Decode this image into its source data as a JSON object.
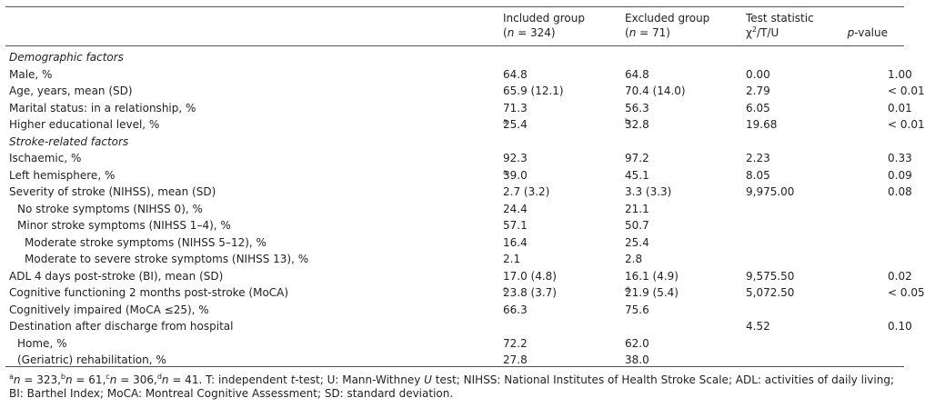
{
  "header": {
    "included_line1": "Included group",
    "included_n": "324",
    "excluded_line1": "Excluded group",
    "excluded_n": "71",
    "test_line1": "Test statistic",
    "test_chi": "χ",
    "test_sup": "2",
    "test_rest": "/T/U",
    "p_italic": "p",
    "p_rest": "-value",
    "n_italic": "n"
  },
  "rows": [
    {
      "label": "Demographic factors",
      "section": true
    },
    {
      "label": "Male, %",
      "inc": "64.8",
      "exc": "64.8",
      "test": "0.00",
      "p": "1.00"
    },
    {
      "label": "Age, years, mean (SD)",
      "inc": "65.9 (12.1)",
      "exc": "70.4 (14.0)",
      "test": "2.79",
      "p": "< 0.01"
    },
    {
      "label": "Marital status: in a relationship, %",
      "inc": "71.3",
      "exc": "56.3",
      "test": "6.05",
      "p": "0.01"
    },
    {
      "label": "Higher educational level, %",
      "inc": "25.4",
      "inc_sup": "a",
      "exc": "32.8",
      "exc_sup": "b",
      "test": "19.68",
      "p": "< 0.01"
    },
    {
      "label": "Stroke-related factors",
      "section": true
    },
    {
      "label": "Ischaemic, %",
      "inc": "92.3",
      "exc": "97.2",
      "test": "2.23",
      "p": "0.33"
    },
    {
      "label": "Left hemisphere, %",
      "inc": "39.0",
      "inc_sup": "a",
      "exc": "45.1",
      "test": "8.05",
      "p": "0.09"
    },
    {
      "label": "Severity of stroke (NIHSS), mean (SD)",
      "inc": "2.7 (3.2)",
      "exc": "3.3 (3.3)",
      "test": "9,975.00",
      "p": "0.08"
    },
    {
      "label": "No stroke symptoms (NIHSS 0), %",
      "indent": 1,
      "inc": "24.4",
      "exc": "21.1"
    },
    {
      "label": "Minor stroke symptoms (NIHSS 1–4), %",
      "indent": 1,
      "inc": "57.1",
      "exc": "50.7"
    },
    {
      "label": "Moderate stroke symptoms (NIHSS 5–12), %",
      "indent": 2,
      "inc": "16.4",
      "exc": "25.4"
    },
    {
      "label": "Moderate to severe stroke symptoms (NIHSS 13), %",
      "indent": 2,
      "inc": "2.1",
      "exc": "2.8"
    },
    {
      "label": "ADL 4 days post-stroke (BI), mean (SD)",
      "inc": "17.0 (4.8)",
      "exc": "16.1 (4.9)",
      "test": "9,575.50",
      "p": "0.02"
    },
    {
      "label": "Cognitive functioning 2 months post-stroke (MoCA)",
      "inc": "23.8 (3.7)",
      "inc_sup": "c",
      "exc": "21.9 (5.4)",
      "exc_sup": "d",
      "test": "5,072.50",
      "p": "< 0.05"
    },
    {
      "label": "Cognitively impaired (MoCA ≤25), %",
      "inc": "66.3",
      "exc": "75.6"
    },
    {
      "label": "Destination after discharge from hospital",
      "test": "4.52",
      "p": "0.10"
    },
    {
      "label": "Home, %",
      "indent": 1,
      "inc": "72.2",
      "exc": "62.0"
    },
    {
      "label": "(Geriatric) rehabilitation, %",
      "indent": 1,
      "inc": "27.8",
      "exc": "38.0"
    }
  ],
  "footnote": {
    "a_mark": "a",
    "a_val": " = 323,",
    "b_mark": "b",
    "b_val": " = 61,",
    "c_mark": "c",
    "c_val": " = 306,",
    "d_mark": "d",
    "d_val": " = 41. T: independent ",
    "t_word": "t",
    "mid": "-test; U: Mann-Withney ",
    "u_word": "U",
    "rest": " test; NIHSS: National Institutes of Health Stroke Scale; ADL: activities of daily living; BI: Barthel Index; MoCA: Montreal Cognitive Assessment; SD: standard deviation."
  }
}
